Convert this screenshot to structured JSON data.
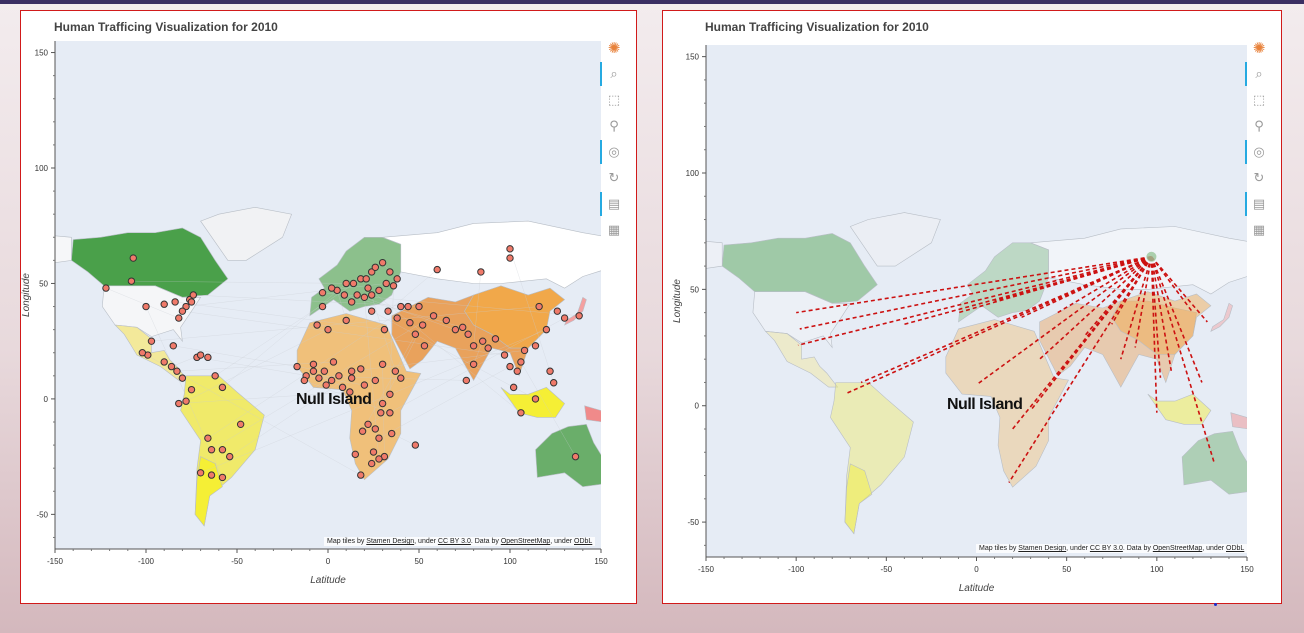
{
  "colors": {
    "ocean": "#e6ecf5",
    "land_default": "#f1f3f6",
    "trace": "#cc1111",
    "point_fill": "#f07a6a",
    "point_stroke": "#333333"
  },
  "panels": [
    {
      "title": "Human Trafficing Visualization for 2010",
      "null_island": "Null Island",
      "mode": "points"
    },
    {
      "title": "Human Trafficing Visualization for 2010",
      "null_island": "Null Island",
      "mode": "flows"
    }
  ],
  "attribution": {
    "p1": "Map tiles by ",
    "stamen": "Stamen Design",
    "p2": ", under ",
    "ccby": "CC BY 3.0",
    "p3": ". Data by ",
    "osm": "OpenStreetMap",
    "p4": ", under ",
    "odbl": "ODbL"
  },
  "toolbar": {
    "icons": [
      "bokeh-logo-icon",
      "wheel-zoom-icon",
      "box-zoom-icon",
      "pan-icon",
      "zoom-in-icon",
      "reset-icon",
      "hover-icon",
      "save-icon"
    ]
  },
  "chart_data": [
    {
      "type": "scatter",
      "title": "Human Trafficing Visualization for 2010",
      "xlabel": "Latitude",
      "ylabel": "Longitude",
      "xlim": [
        -150,
        150
      ],
      "ylim": [
        -65,
        155
      ],
      "xticks": [
        -150,
        -100,
        -50,
        0,
        50,
        100,
        150
      ],
      "yticks": [
        -50,
        0,
        50,
        100,
        150
      ],
      "points": [
        [
          -122,
          48
        ],
        [
          -107,
          61
        ],
        [
          -108,
          51
        ],
        [
          -100,
          40
        ],
        [
          -90,
          41
        ],
        [
          -84,
          42
        ],
        [
          -78,
          40
        ],
        [
          -76,
          43
        ],
        [
          -74,
          45
        ],
        [
          -80,
          38
        ],
        [
          -75,
          42
        ],
        [
          -82,
          35
        ],
        [
          -85,
          23
        ],
        [
          -99,
          19
        ],
        [
          -97,
          25
        ],
        [
          -102,
          20
        ],
        [
          -90,
          16
        ],
        [
          -86,
          14
        ],
        [
          -83,
          12
        ],
        [
          -80,
          9
        ],
        [
          -72,
          18
        ],
        [
          -70,
          19
        ],
        [
          -66,
          18
        ],
        [
          -62,
          10
        ],
        [
          -58,
          5
        ],
        [
          -75,
          4
        ],
        [
          -78,
          -1
        ],
        [
          -66,
          -17
        ],
        [
          -58,
          -22
        ],
        [
          -64,
          -22
        ],
        [
          -70,
          -32
        ],
        [
          -64,
          -33
        ],
        [
          -58,
          -34
        ],
        [
          -54,
          -25
        ],
        [
          -48,
          -11
        ],
        [
          -3,
          46
        ],
        [
          5,
          47
        ],
        [
          2,
          48
        ],
        [
          10,
          50
        ],
        [
          14,
          50
        ],
        [
          18,
          52
        ],
        [
          21,
          52
        ],
        [
          24,
          55
        ],
        [
          26,
          57
        ],
        [
          30,
          59
        ],
        [
          34,
          55
        ],
        [
          24,
          45
        ],
        [
          20,
          44
        ],
        [
          16,
          45
        ],
        [
          13,
          42
        ],
        [
          9,
          45
        ],
        [
          22,
          48
        ],
        [
          28,
          47
        ],
        [
          32,
          50
        ],
        [
          36,
          49
        ],
        [
          38,
          52
        ],
        [
          24,
          38
        ],
        [
          33,
          38
        ],
        [
          40,
          40
        ],
        [
          44,
          40
        ],
        [
          50,
          40
        ],
        [
          45,
          33
        ],
        [
          52,
          32
        ],
        [
          58,
          36
        ],
        [
          65,
          34
        ],
        [
          70,
          30
        ],
        [
          74,
          31
        ],
        [
          77,
          28
        ],
        [
          80,
          23
        ],
        [
          85,
          25
        ],
        [
          88,
          22
        ],
        [
          80,
          15
        ],
        [
          76,
          8
        ],
        [
          92,
          26
        ],
        [
          97,
          19
        ],
        [
          100,
          14
        ],
        [
          104,
          12
        ],
        [
          106,
          16
        ],
        [
          108,
          21
        ],
        [
          114,
          23
        ],
        [
          120,
          30
        ],
        [
          116,
          40
        ],
        [
          126,
          38
        ],
        [
          130,
          35
        ],
        [
          138,
          36
        ],
        [
          102,
          5
        ],
        [
          106,
          -6
        ],
        [
          114,
          0
        ],
        [
          122,
          12
        ],
        [
          124,
          7
        ],
        [
          136,
          -25
        ],
        [
          -17,
          14
        ],
        [
          -12,
          10
        ],
        [
          -8,
          12
        ],
        [
          -5,
          9
        ],
        [
          -2,
          12
        ],
        [
          2,
          8
        ],
        [
          6,
          10
        ],
        [
          8,
          5
        ],
        [
          12,
          3
        ],
        [
          13,
          9
        ],
        [
          18,
          13
        ],
        [
          20,
          6
        ],
        [
          26,
          8
        ],
        [
          30,
          15
        ],
        [
          37,
          12
        ],
        [
          40,
          9
        ],
        [
          34,
          2
        ],
        [
          30,
          -2
        ],
        [
          29,
          -6
        ],
        [
          34,
          -6
        ],
        [
          22,
          -11
        ],
        [
          26,
          -13
        ],
        [
          28,
          -17
        ],
        [
          31,
          -25
        ],
        [
          24,
          -28
        ],
        [
          18,
          -33
        ],
        [
          48,
          -20
        ],
        [
          25,
          -23
        ],
        [
          -8,
          15
        ],
        [
          31,
          30
        ],
        [
          38,
          35
        ],
        [
          10,
          34
        ],
        [
          0,
          30
        ],
        [
          -6,
          32
        ],
        [
          35,
          -15
        ],
        [
          28,
          -26
        ],
        [
          100,
          61
        ],
        [
          60,
          56
        ],
        [
          84,
          55
        ],
        [
          53,
          23
        ],
        [
          48,
          28
        ],
        [
          100,
          65
        ],
        [
          -3,
          40
        ],
        [
          13,
          12
        ],
        [
          -13,
          8
        ],
        [
          -1,
          6
        ],
        [
          3,
          16
        ],
        [
          19,
          -14
        ],
        [
          15,
          -24
        ],
        [
          -82,
          -2
        ]
      ]
    },
    {
      "type": "line",
      "title": "Human Trafficing Visualization for 2010",
      "xlabel": "Latitude",
      "ylabel": "Longitude",
      "xlim": [
        -150,
        150
      ],
      "ylim": [
        -65,
        155
      ],
      "xticks": [
        -150,
        -100,
        -50,
        0,
        50,
        100,
        150
      ],
      "yticks": [
        -50,
        0,
        50,
        100,
        150
      ],
      "origin": [
        97,
        64
      ],
      "destinations": [
        [
          -100,
          40
        ],
        [
          -98,
          33
        ],
        [
          -99,
          26
        ],
        [
          -73,
          5
        ],
        [
          -64,
          10
        ],
        [
          -40,
          35
        ],
        [
          -10,
          40
        ],
        [
          0,
          9
        ],
        [
          18,
          -33
        ],
        [
          30,
          -2
        ],
        [
          20,
          -10
        ],
        [
          40,
          8
        ],
        [
          35,
          20
        ],
        [
          45,
          40
        ],
        [
          55,
          50
        ],
        [
          10,
          45
        ],
        [
          25,
          38
        ],
        [
          80,
          20
        ],
        [
          88,
          25
        ],
        [
          102,
          12
        ],
        [
          108,
          15
        ],
        [
          120,
          40
        ],
        [
          128,
          36
        ],
        [
          132,
          -25
        ],
        [
          125,
          10
        ],
        [
          100,
          -3
        ],
        [
          60,
          30
        ],
        [
          75,
          35
        ]
      ]
    }
  ]
}
